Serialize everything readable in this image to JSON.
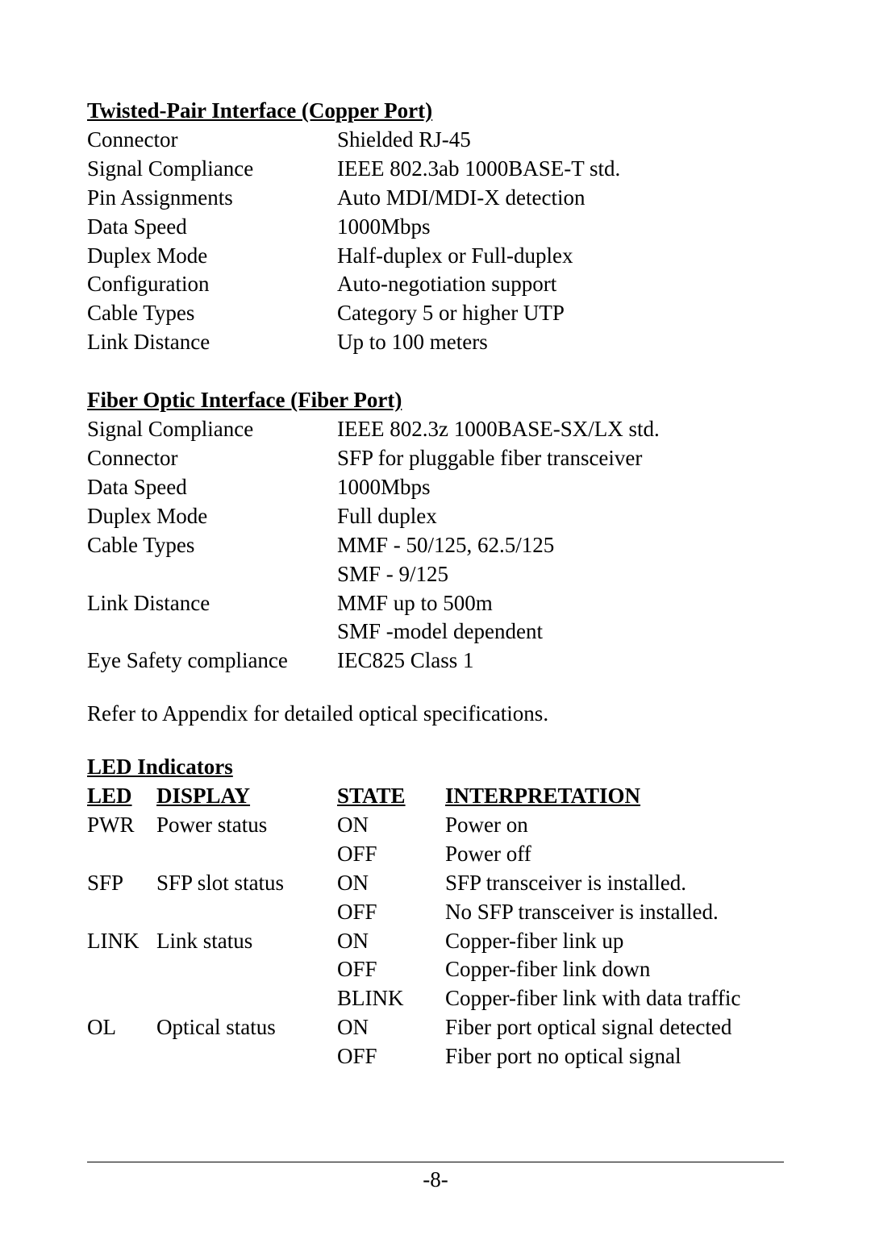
{
  "colors": {
    "text": "#000000",
    "background": "#ffffff",
    "rule": "#000000"
  },
  "typography": {
    "family": "Times New Roman, serif",
    "body_size_pt": 20,
    "line_height": 1.33,
    "heading_weight": "bold",
    "heading_underline": true
  },
  "sections": {
    "copper": {
      "title": "Twisted-Pair Interface (Copper Port)",
      "rows": [
        {
          "label": "Connector",
          "value": "Shielded RJ-45"
        },
        {
          "label": "Signal Compliance",
          "value": "IEEE 802.3ab 1000BASE-T std."
        },
        {
          "label": "Pin Assignments",
          "value": "Auto MDI/MDI-X detection"
        },
        {
          "label": "Data Speed",
          "value": "1000Mbps"
        },
        {
          "label": "Duplex Mode",
          "value": "Half-duplex or Full-duplex"
        },
        {
          "label": "Configuration",
          "value": "Auto-negotiation support"
        },
        {
          "label": "Cable Types",
          "value": "Category 5 or higher UTP"
        },
        {
          "label": "Link Distance",
          "value": "Up to 100 meters"
        }
      ]
    },
    "fiber": {
      "title": "Fiber Optic Interface (Fiber Port)",
      "rows": [
        {
          "label": "Signal Compliance",
          "value": "IEEE 802.3z 1000BASE-SX/LX std."
        },
        {
          "label": "Connector",
          "value": "SFP for pluggable fiber transceiver"
        },
        {
          "label": "Data Speed",
          "value": "1000Mbps"
        },
        {
          "label": "Duplex Mode",
          "value": "Full duplex"
        },
        {
          "label": "Cable Types",
          "value": "MMF - 50/125, 62.5/125"
        },
        {
          "label": "",
          "value": "SMF - 9/125"
        },
        {
          "label": "Link Distance",
          "value": "MMF up to 500m"
        },
        {
          "label": "",
          "value": "SMF -model dependent"
        },
        {
          "label": "Eye Safety compliance",
          "value": "IEC825 Class 1"
        }
      ]
    }
  },
  "appendix_note": "Refer to Appendix for detailed optical specifications.",
  "led": {
    "title": "LED Indicators",
    "headers": {
      "c1": "LED",
      "c2": "DISPLAY",
      "c3": "STATE",
      "c4": "INTERPRETATION"
    },
    "rows": [
      {
        "c1": "PWR",
        "c2": "Power status",
        "c3": "ON",
        "c4": "Power on"
      },
      {
        "c1": "",
        "c2": "",
        "c3": "OFF",
        "c4": "Power off"
      },
      {
        "c1": "SFP",
        "c2": "SFP slot status",
        "c3": "ON",
        "c4": "SFP transceiver is installed."
      },
      {
        "c1": "",
        "c2": "",
        "c3": "OFF",
        "c4": "No SFP transceiver is installed."
      },
      {
        "c1": "LINK",
        "c2": "Link status",
        "c3": "ON",
        "c4": "Copper-fiber link up"
      },
      {
        "c1": "",
        "c2": "",
        "c3": "OFF",
        "c4": "Copper-fiber link down"
      },
      {
        "c1": "",
        "c2": "",
        "c3": "BLINK",
        "c4": "Copper-fiber link with data traffic"
      },
      {
        "c1": "OL",
        "c2": "Optical status",
        "c3": "ON",
        "c4": "Fiber port optical signal detected"
      },
      {
        "c1": "",
        "c2": "",
        "c3": "OFF",
        "c4": "Fiber port no optical signal"
      }
    ]
  },
  "footer": {
    "page_label": "-8-"
  }
}
